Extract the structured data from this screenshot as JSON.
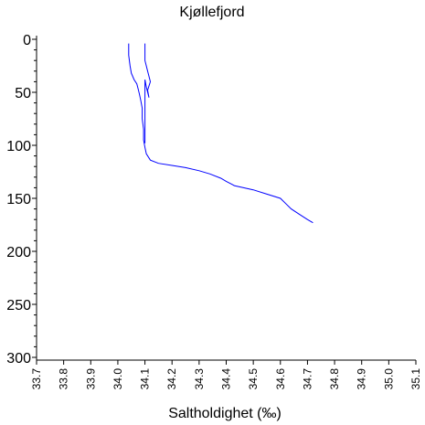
{
  "chart_data": {
    "type": "line",
    "title": "Kjøllefjord",
    "xlabel": "Saltholdighet (‰)",
    "ylabel": "",
    "xlim": [
      33.7,
      35.1
    ],
    "ylim": [
      0,
      300
    ],
    "y_inverted": true,
    "grid": false,
    "x_ticks": [
      "33.7",
      "33.8",
      "33.9",
      "34.0",
      "34.1",
      "34.2",
      "34.3",
      "34.4",
      "34.5",
      "34.6",
      "34.7",
      "34.8",
      "34.9",
      "35.0",
      "35.1"
    ],
    "y_ticks": [
      "0",
      "50",
      "100",
      "150",
      "200",
      "250",
      "300"
    ],
    "series": [
      {
        "color": "#0000ff",
        "points": [
          [
            34.04,
            4
          ],
          [
            34.04,
            15
          ],
          [
            34.045,
            25
          ],
          [
            34.05,
            32
          ],
          [
            34.06,
            38
          ],
          [
            34.07,
            42
          ],
          [
            34.075,
            47
          ],
          [
            34.08,
            52
          ],
          [
            34.085,
            58
          ],
          [
            34.09,
            65
          ],
          [
            34.09,
            75
          ],
          [
            34.095,
            85
          ],
          [
            34.095,
            95
          ],
          [
            34.1,
            102
          ],
          [
            34.105,
            108
          ],
          [
            34.12,
            114
          ],
          [
            34.15,
            117
          ],
          [
            34.2,
            119
          ],
          [
            34.25,
            121
          ],
          [
            34.3,
            124
          ],
          [
            34.34,
            127
          ],
          [
            34.38,
            131
          ],
          [
            34.4,
            134
          ],
          [
            34.43,
            138
          ],
          [
            34.5,
            142
          ],
          [
            34.55,
            146
          ],
          [
            34.6,
            150
          ],
          [
            34.62,
            155
          ],
          [
            34.64,
            160
          ],
          [
            34.67,
            165
          ],
          [
            34.7,
            170
          ],
          [
            34.72,
            173
          ]
        ]
      },
      {
        "color": "#0000ff",
        "points": [
          [
            34.1,
            4
          ],
          [
            34.1,
            20
          ],
          [
            34.11,
            30
          ],
          [
            34.12,
            40
          ],
          [
            34.11,
            48
          ],
          [
            34.115,
            55
          ],
          [
            34.105,
            45
          ],
          [
            34.1,
            38
          ],
          [
            34.1,
            50
          ],
          [
            34.1,
            70
          ],
          [
            34.1,
            85
          ],
          [
            34.1,
            98
          ]
        ]
      }
    ]
  }
}
